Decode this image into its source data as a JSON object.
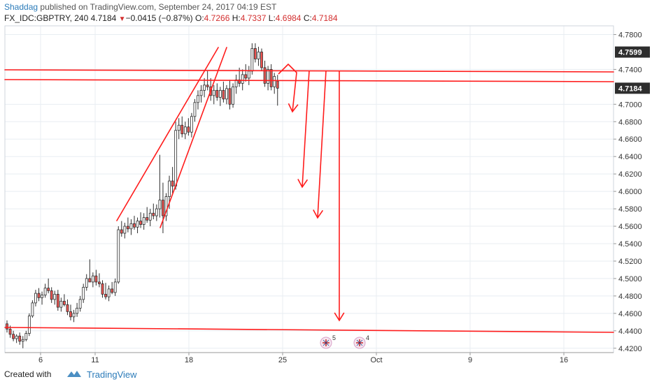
{
  "header": {
    "author": "Shaddag",
    "published_text": "published on TradingView.com, September 24, 2017 04:19 EST",
    "symbol": "FX_IDC:GBPTRY, 240",
    "last": "4.7184",
    "change_arrow": "▼",
    "change": "−0.0415 (−0.87%)",
    "o_label": "O:",
    "o_value": "4.7266",
    "h_label": "H:",
    "h_value": "4.7337",
    "l_label": "L:",
    "l_value": "4.6984",
    "c_label": "C:",
    "c_value": "4.7184"
  },
  "footer": {
    "created_with": "Created with",
    "brand": "TradingView",
    "logo_icon": "tradingview-cloud-icon"
  },
  "colors": {
    "up": "#ffffff",
    "down": "#ef5350",
    "candle_border": "#2e2e2e",
    "drawing": "#ff1c1c",
    "price_label_bg": "#2e2e2e",
    "grid": "#e8edf2",
    "axis_text": "#333333"
  },
  "chart_data": {
    "type": "candlestick",
    "price_range": [
      4.415,
      4.79
    ],
    "y_ticks": [
      "4.7800",
      "4.7400",
      "4.7000",
      "4.6800",
      "4.6600",
      "4.6400",
      "4.6200",
      "4.6000",
      "4.5800",
      "4.5600",
      "4.5400",
      "4.5200",
      "4.5000",
      "4.4800",
      "4.4600",
      "4.4400",
      "4.4200"
    ],
    "price_labels": [
      "4.7599",
      "4.7184"
    ],
    "x_ticks": [
      "6",
      "11",
      "18",
      "25",
      "Oct",
      "9",
      "16"
    ],
    "event_markers": [
      {
        "label": "5",
        "icon": "uk-flag-icon"
      },
      {
        "label": "4",
        "icon": "uk-flag-icon"
      }
    ],
    "candles": [
      [
        4.448,
        4.452,
        4.438,
        4.442
      ],
      [
        4.442,
        4.446,
        4.432,
        4.436
      ],
      [
        4.436,
        4.44,
        4.428,
        4.431
      ],
      [
        4.431,
        4.436,
        4.426,
        4.434
      ],
      [
        4.434,
        4.438,
        4.424,
        4.428
      ],
      [
        4.428,
        4.434,
        4.42,
        4.43
      ],
      [
        4.43,
        4.44,
        4.428,
        4.437
      ],
      [
        4.437,
        4.46,
        4.434,
        4.457
      ],
      [
        4.457,
        4.475,
        4.455,
        4.472
      ],
      [
        4.472,
        4.487,
        4.468,
        4.483
      ],
      [
        4.483,
        4.489,
        4.474,
        4.478
      ],
      [
        4.478,
        4.485,
        4.47,
        4.481
      ],
      [
        4.481,
        4.494,
        4.478,
        4.489
      ],
      [
        4.489,
        4.5,
        4.483,
        4.486
      ],
      [
        4.486,
        4.49,
        4.472,
        4.476
      ],
      [
        4.476,
        4.486,
        4.47,
        4.482
      ],
      [
        4.482,
        4.487,
        4.463,
        4.467
      ],
      [
        4.467,
        4.478,
        4.462,
        4.474
      ],
      [
        4.474,
        4.482,
        4.468,
        4.47
      ],
      [
        4.47,
        4.476,
        4.458,
        4.462
      ],
      [
        4.462,
        4.47,
        4.452,
        4.456
      ],
      [
        4.456,
        4.464,
        4.45,
        4.46
      ],
      [
        4.46,
        4.472,
        4.456,
        4.466
      ],
      [
        4.466,
        4.48,
        4.462,
        4.476
      ],
      [
        4.476,
        4.494,
        4.472,
        4.49
      ],
      [
        4.49,
        4.505,
        4.486,
        4.5
      ],
      [
        4.5,
        4.522,
        4.496,
        4.496
      ],
      [
        4.496,
        4.507,
        4.49,
        4.503
      ],
      [
        4.503,
        4.51,
        4.492,
        4.496
      ],
      [
        4.496,
        4.506,
        4.49,
        4.494
      ],
      [
        4.494,
        4.498,
        4.478,
        4.482
      ],
      [
        4.482,
        4.495,
        4.476,
        4.479
      ],
      [
        4.479,
        4.492,
        4.474,
        4.488
      ],
      [
        4.488,
        4.496,
        4.482,
        4.484
      ],
      [
        4.484,
        4.5,
        4.48,
        4.496
      ],
      [
        4.496,
        4.56,
        4.494,
        4.556
      ],
      [
        4.556,
        4.566,
        4.548,
        4.552
      ],
      [
        4.552,
        4.564,
        4.546,
        4.56
      ],
      [
        4.56,
        4.57,
        4.553,
        4.557
      ],
      [
        4.557,
        4.568,
        4.55,
        4.563
      ],
      [
        4.563,
        4.572,
        4.556,
        4.559
      ],
      [
        4.559,
        4.57,
        4.552,
        4.566
      ],
      [
        4.566,
        4.576,
        4.558,
        4.562
      ],
      [
        4.562,
        4.575,
        4.556,
        4.57
      ],
      [
        4.57,
        4.582,
        4.564,
        4.567
      ],
      [
        4.567,
        4.58,
        4.56,
        4.575
      ],
      [
        4.575,
        4.586,
        4.568,
        4.572
      ],
      [
        4.572,
        4.585,
        4.566,
        4.58
      ],
      [
        4.58,
        4.642,
        4.57,
        4.59
      ],
      [
        4.59,
        4.61,
        4.552,
        4.572
      ],
      [
        4.572,
        4.598,
        4.566,
        4.594
      ],
      [
        4.594,
        4.618,
        4.58,
        4.612
      ],
      [
        4.612,
        4.628,
        4.598,
        4.606
      ],
      [
        4.606,
        4.68,
        4.602,
        4.67
      ],
      [
        4.67,
        4.684,
        4.66,
        4.676
      ],
      [
        4.676,
        4.686,
        4.662,
        4.666
      ],
      [
        4.666,
        4.68,
        4.66,
        4.674
      ],
      [
        4.674,
        4.684,
        4.664,
        4.668
      ],
      [
        4.668,
        4.69,
        4.662,
        4.686
      ],
      [
        4.686,
        4.706,
        4.68,
        4.702
      ],
      [
        4.702,
        4.716,
        4.694,
        4.71
      ],
      [
        4.71,
        4.722,
        4.702,
        4.716
      ],
      [
        4.716,
        4.73,
        4.708,
        4.722
      ],
      [
        4.722,
        4.738,
        4.716,
        4.72
      ],
      [
        4.72,
        4.73,
        4.704,
        4.71
      ],
      [
        4.71,
        4.722,
        4.7,
        4.716
      ],
      [
        4.716,
        4.724,
        4.704,
        4.708
      ],
      [
        4.708,
        4.72,
        4.698,
        4.716
      ],
      [
        4.716,
        4.726,
        4.702,
        4.706
      ],
      [
        4.706,
        4.722,
        4.7,
        4.718
      ],
      [
        4.718,
        4.728,
        4.694,
        4.7
      ],
      [
        4.7,
        4.724,
        4.696,
        4.72
      ],
      [
        4.72,
        4.734,
        4.712,
        4.728
      ],
      [
        4.728,
        4.742,
        4.72,
        4.724
      ],
      [
        4.724,
        4.74,
        4.716,
        4.734
      ],
      [
        4.734,
        4.746,
        4.726,
        4.73
      ],
      [
        4.73,
        4.744,
        4.722,
        4.738
      ],
      [
        4.738,
        4.77,
        4.734,
        4.764
      ],
      [
        4.764,
        4.77,
        4.748,
        4.752
      ],
      [
        4.752,
        4.766,
        4.744,
        4.76
      ],
      [
        4.76,
        4.764,
        4.738,
        4.742
      ],
      [
        4.742,
        4.75,
        4.72,
        4.724
      ],
      [
        4.724,
        4.744,
        4.716,
        4.74
      ],
      [
        4.74,
        4.746,
        4.716,
        4.72
      ],
      [
        4.72,
        4.736,
        4.712,
        4.732
      ],
      [
        4.7266,
        4.7337,
        4.6984,
        4.7184
      ]
    ]
  }
}
